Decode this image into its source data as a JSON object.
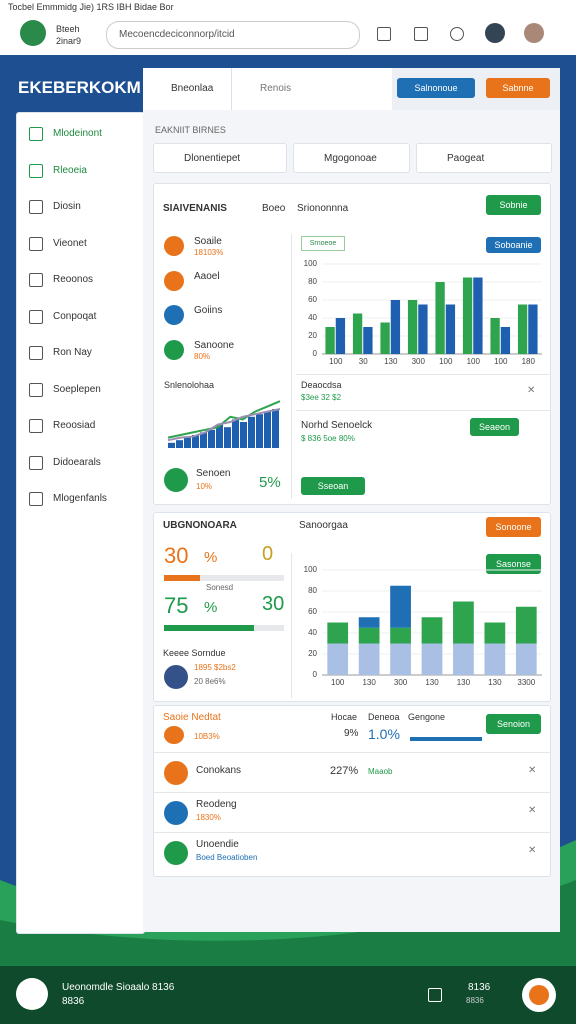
{
  "browser": {
    "tab_title": "Tocbel Emmmidg Jie) 1RS IBH Bidae Bor",
    "site_name": "Bteeh",
    "site_sub": "2inar9",
    "address": "Mecoencdeciconnorp/itcid"
  },
  "app": {
    "title": "EKEBERKOKM"
  },
  "sidebar": {
    "items": [
      "Mlodeinont",
      "Rleoeia",
      "Diosin",
      "Vieonet",
      "Reoonos",
      "Conpoqat",
      "Ron Nay",
      "Soeplepen",
      "Reoosiad",
      "Didoearals",
      "Mlogenfanls"
    ]
  },
  "tabs": [
    "Bneonlaa",
    "Renois"
  ],
  "header_buttons": [
    "Salnonoue",
    "Sabnne"
  ],
  "section_label": "EAKNIIT BIRNES",
  "filters": [
    "Dlonentiepet",
    "Mgogonoae",
    "Paogeat"
  ],
  "overview": {
    "title": "SIAIVENANIS",
    "tab": "Boeo",
    "subtitle": "Sriononnna",
    "button": "Sobnie",
    "items": [
      {
        "label": "Soaile",
        "sub": "18103%"
      },
      {
        "label": "Aaoel"
      },
      {
        "label": "Goiins"
      },
      {
        "label": "Sanoone",
        "sub": "80%"
      }
    ],
    "trend": {
      "type": "combo",
      "title": "Snlenolohaa",
      "ylim": [
        0,
        100
      ],
      "series": [
        {
          "kind": "bar",
          "color": "#1f5fb0",
          "values": [
            10,
            15,
            20,
            25,
            30,
            35,
            45,
            40,
            55,
            50,
            60,
            65,
            70,
            75
          ]
        },
        {
          "kind": "line",
          "color": "#2ea44f",
          "values": [
            20,
            25,
            30,
            35,
            40,
            60,
            55,
            70,
            80,
            90
          ]
        },
        {
          "kind": "line",
          "color": "#9a8fb0",
          "values": [
            15,
            20,
            22,
            30,
            45,
            50,
            60,
            65,
            70,
            75
          ]
        }
      ]
    },
    "gauge": {
      "label": "Senoen",
      "value": "10%",
      "change": "5%"
    },
    "chart_badge": "Srnoeoe",
    "chart_button": "Soboanie",
    "chart": {
      "type": "bar",
      "ylim": [
        0,
        100
      ],
      "yticks": [
        0,
        20,
        40,
        60,
        80,
        100
      ],
      "categories": [
        "100",
        "30",
        "130",
        "300",
        "100",
        "100",
        "100",
        "180"
      ],
      "series": [
        {
          "color": "#2ea44f",
          "values": [
            30,
            45,
            35,
            60,
            80,
            85,
            40,
            55
          ]
        },
        {
          "color": "#1f5fb0",
          "values": [
            40,
            30,
            60,
            55,
            55,
            85,
            30,
            55
          ]
        }
      ]
    },
    "rows": [
      {
        "label": "Deaocdsa",
        "sub": "$3ee 32 $2"
      },
      {
        "label": "Norhd Senoelck",
        "sub": "$ 836 5oe 80%",
        "button": "Seaeon"
      }
    ],
    "footer_button": "Sseoan"
  },
  "stats": {
    "title": "UBGNONOARA",
    "subtitle": "Sanoorgaa",
    "button": "Sonoone",
    "button2": "Sasonse",
    "metrics": [
      {
        "value": 30,
        "unit": "%",
        "side": "0",
        "color": "#e8731a"
      },
      {
        "value": 75,
        "unit": "%",
        "side": "30",
        "caption": "Sonesd",
        "color": "#1f9a4a"
      }
    ],
    "item": {
      "label": "Keeee Sorndue",
      "sub": "1895 $2bs2",
      "sub2": "20 8e6%"
    },
    "chart": {
      "type": "bar",
      "stacked": true,
      "ylim": [
        0,
        100
      ],
      "yticks": [
        0,
        20,
        40,
        60,
        80,
        100
      ],
      "categories": [
        "100",
        "130",
        "300",
        "130",
        "130",
        "130",
        "3300"
      ],
      "series": [
        {
          "color": "#a9bfe3",
          "values": [
            30,
            30,
            30,
            30,
            30,
            30,
            30
          ]
        },
        {
          "color": "#2ea44f",
          "values": [
            20,
            15,
            15,
            25,
            40,
            20,
            35
          ]
        },
        {
          "color": "#1f6fb5",
          "values": [
            0,
            10,
            40,
            0,
            0,
            0,
            0
          ]
        }
      ]
    }
  },
  "tasks": {
    "header": [
      "Saoie Nedtat",
      "Hocae",
      "Deneoa",
      "Gengone"
    ],
    "header_sub": "10B3%",
    "header_pct": "9%",
    "header_val": "1.0%",
    "button": "Senoion",
    "rows": [
      {
        "label": "Conokans",
        "pct": "227%",
        "val": "Maaob"
      },
      {
        "label": "Reodeng",
        "sub": "1830%"
      },
      {
        "label": "Unoendie",
        "sub": "Boed Beoatioben"
      }
    ]
  },
  "footer": {
    "title": "Ueonomdle Sioaalo 8136",
    "sub": "8836",
    "value": "8136",
    "value_sub": "8836"
  }
}
